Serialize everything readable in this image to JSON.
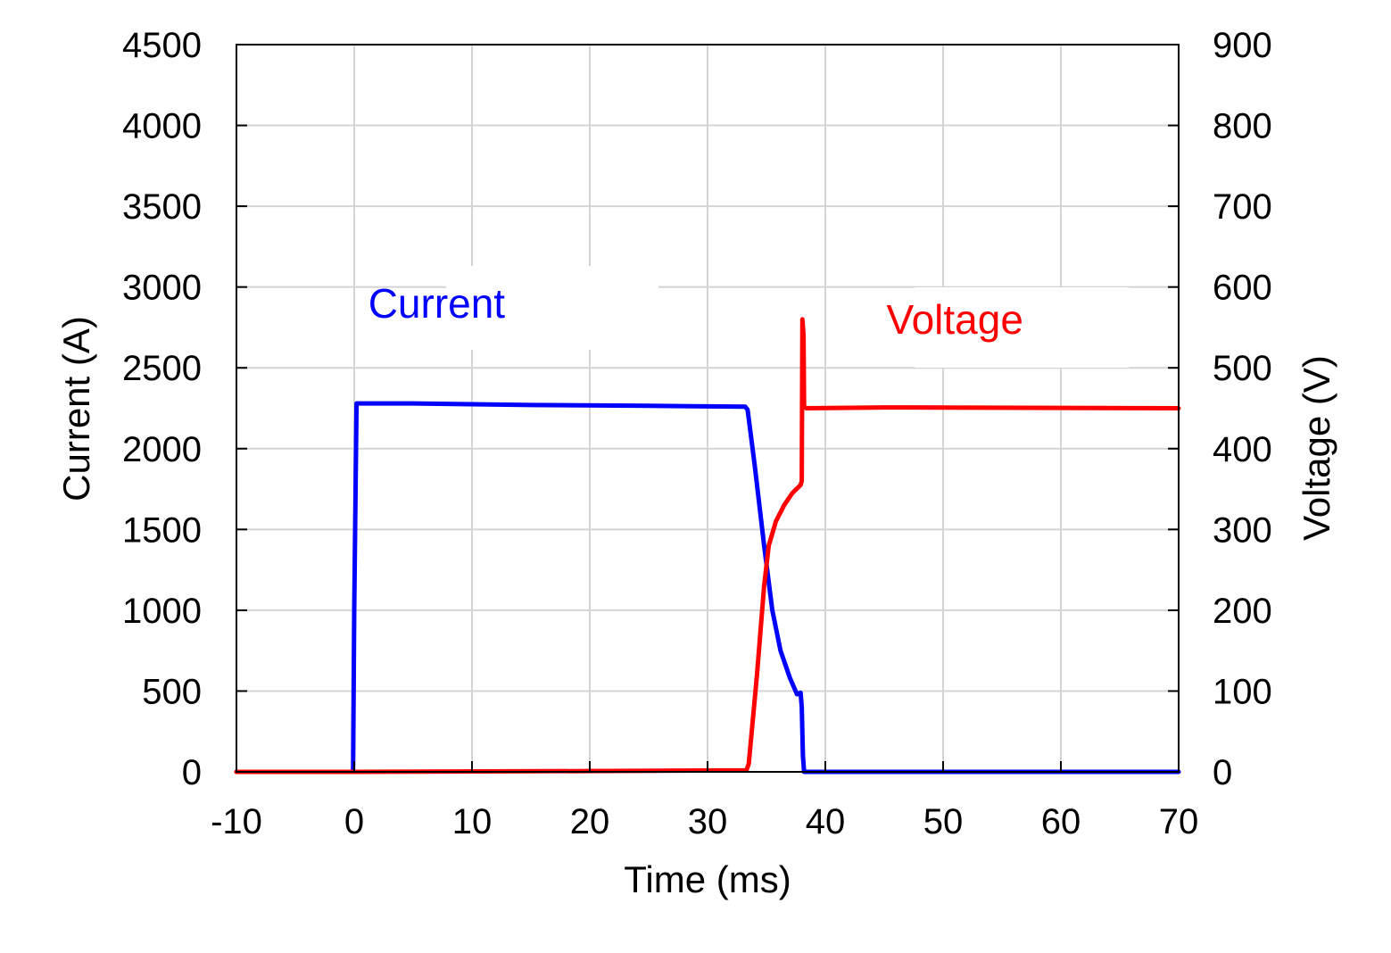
{
  "chart_data": {
    "type": "line",
    "xlabel": "Time (ms)",
    "ylabel_left": "Current (A)",
    "ylabel_right": "Voltage (V)",
    "xlim": [
      -10,
      70
    ],
    "ylim_left": [
      0,
      4500
    ],
    "ylim_right": [
      0,
      900
    ],
    "x_ticks": [
      -10,
      0,
      10,
      20,
      30,
      40,
      50,
      60,
      70
    ],
    "x_tick_labels": [
      "-10",
      "0",
      "10",
      "20",
      "30",
      "40",
      "50",
      "60",
      "70"
    ],
    "y_left_ticks": [
      0,
      500,
      1000,
      1500,
      2000,
      2500,
      3000,
      3500,
      4000,
      4500
    ],
    "y_left_tick_labels": [
      "0",
      "500",
      "1000",
      "1500",
      "2000",
      "2500",
      "3000",
      "3500",
      "4000",
      "4500"
    ],
    "y_right_ticks": [
      0,
      100,
      200,
      300,
      400,
      500,
      600,
      700,
      800,
      900
    ],
    "y_right_tick_labels": [
      "0",
      "100",
      "200",
      "300",
      "400",
      "500",
      "600",
      "700",
      "800",
      "900"
    ],
    "grid": true,
    "series": [
      {
        "name": "Current",
        "axis": "left",
        "color": "#0000ff",
        "x": [
          -10,
          -0.1,
          0,
          0.2,
          5,
          15,
          25,
          33.2,
          33.4,
          34,
          34.8,
          35.5,
          36.2,
          37,
          37.6,
          37.9,
          38.0,
          38.1,
          38.2,
          50,
          70
        ],
        "y": [
          0,
          0,
          1000,
          2280,
          2280,
          2270,
          2265,
          2260,
          2240,
          1900,
          1400,
          1000,
          750,
          580,
          480,
          490,
          400,
          100,
          0,
          0,
          0
        ]
      },
      {
        "name": "Voltage",
        "axis": "right",
        "color": "#ff0000",
        "x": [
          -10,
          0,
          20,
          33.3,
          33.5,
          34.2,
          34.8,
          35.2,
          35.8,
          36.5,
          37.2,
          37.9,
          38.0,
          38.05,
          38.15,
          38.2,
          38.4,
          45,
          70
        ],
        "y": [
          0,
          0,
          1,
          2,
          10,
          120,
          230,
          280,
          310,
          330,
          345,
          355,
          360,
          560,
          540,
          452,
          450,
          451,
          450
        ]
      }
    ],
    "annotations": [
      {
        "text": "Current",
        "x": 7,
        "y_left": 2900,
        "color": "#0000ff"
      },
      {
        "text": "Voltage",
        "x": 51,
        "y_left": 2800,
        "color": "#ff0000"
      }
    ]
  }
}
